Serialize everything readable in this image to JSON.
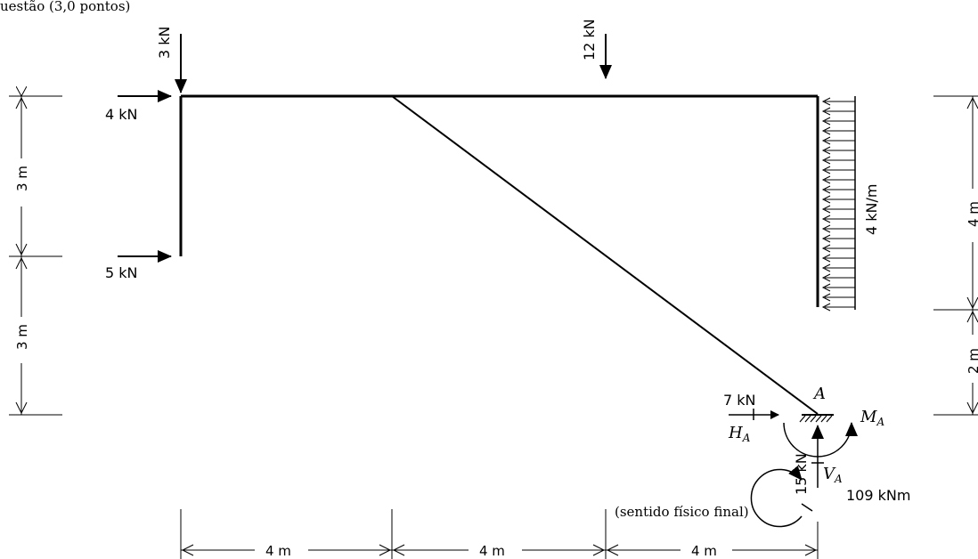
{
  "header_fragment": "uestão (3,0 pontos)",
  "loads": {
    "v3": "3 kN",
    "v12": "12 kN",
    "h4": "4 kN",
    "h5": "5 kN",
    "dist": "4 kN/m"
  },
  "support": {
    "name": "A",
    "ha_value": "7 kN",
    "ha_symbol": "H",
    "va_value": "15 kN",
    "va_symbol": "V",
    "ma_symbol": "M",
    "ma_value": "109 kNm",
    "subscript": "A"
  },
  "dimensions": {
    "left_upper": "3 m",
    "left_lower": "3 m",
    "right_upper": "4 m",
    "right_lower": "2 m",
    "bottom": [
      "4 m",
      "4 m",
      "4 m"
    ]
  },
  "note": "(sentido físico final)"
}
